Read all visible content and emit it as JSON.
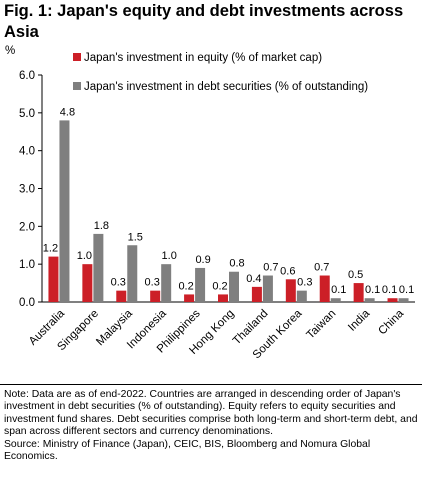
{
  "header": {
    "title": "Fig. 1: Japan's equity and debt investments across Asia"
  },
  "chart_data": {
    "type": "bar",
    "ylabel": "%",
    "ylim": [
      0,
      6
    ],
    "yticks": [
      "0.0",
      "1.0",
      "2.0",
      "3.0",
      "4.0",
      "5.0",
      "6.0"
    ],
    "grid": false,
    "legend": "top-right",
    "categories": [
      "Australia",
      "Singapore",
      "Malaysia",
      "Indonesia",
      "Philippines",
      "Hong Kong",
      "Thailand",
      "South Korea",
      "Taiwan",
      "India",
      "China"
    ],
    "series": [
      {
        "name": "Japan's investment in equity (% of market cap)",
        "color": "#cc1f27",
        "values": [
          1.2,
          1.0,
          0.3,
          0.3,
          0.2,
          0.2,
          0.4,
          0.6,
          0.7,
          0.5,
          0.1
        ],
        "labels": [
          "1.2",
          "1.0",
          "0.3",
          "0.3",
          "0.2",
          "0.2",
          "0.4",
          "0.6",
          "0.7",
          "0.5",
          "0.1"
        ]
      },
      {
        "name": "Japan's investment in debt securities (% of outstanding)",
        "color": "#7f7f7f",
        "values": [
          4.8,
          1.8,
          1.5,
          1.0,
          0.9,
          0.8,
          0.7,
          0.3,
          0.1,
          0.1,
          0.1
        ],
        "labels": [
          "4.8",
          "1.8",
          "1.5",
          "1.0",
          "0.9",
          "0.8",
          "0.7",
          "0.3",
          "0.1",
          "0.1",
          "0.1"
        ]
      }
    ]
  },
  "notes": {
    "note": "Note: Data are as of end-2022. Countries are arranged in descending order of Japan's investment in debt securities (% of outstanding). Equity refers to equity securities and investment fund shares. Debt securities comprise both long-term and short-term debt, and span across different sectors and currency denominations.",
    "source": "Source: Ministry of Finance (Japan), CEIC, BIS, Bloomberg and Nomura Global Economics."
  }
}
